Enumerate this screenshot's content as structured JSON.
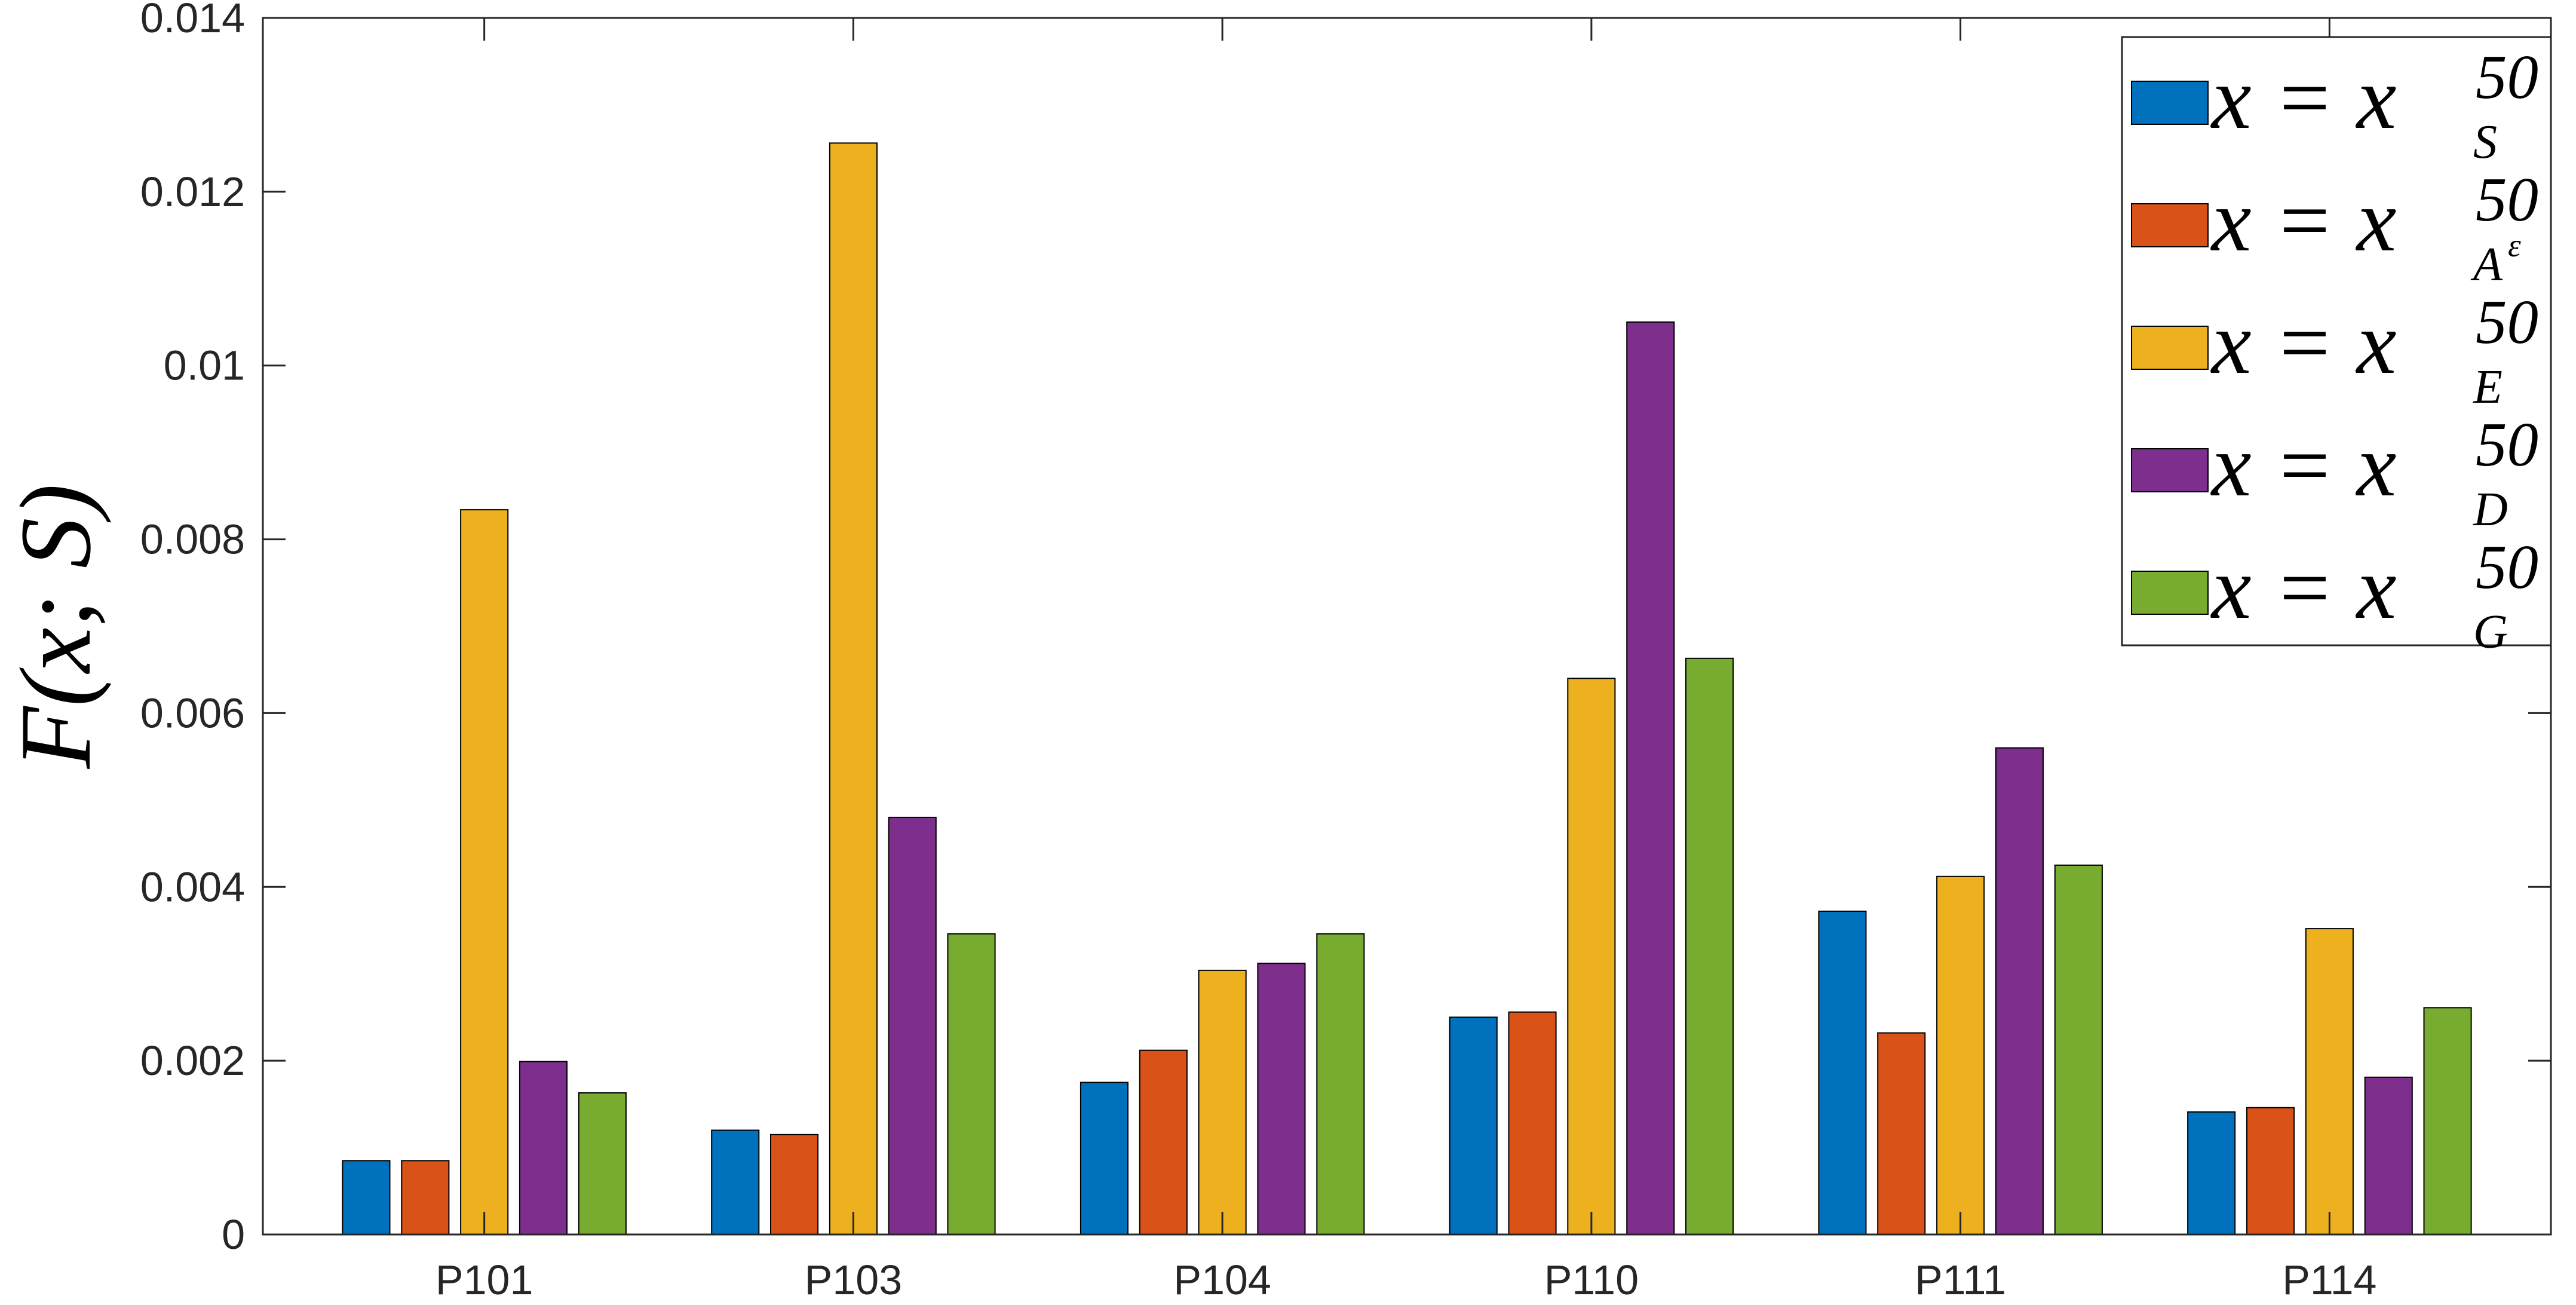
{
  "chart_data": {
    "type": "bar",
    "categories": [
      "P101",
      "P103",
      "P104",
      "P110",
      "P111",
      "P114"
    ],
    "series": [
      {
        "name": "x = x^50_S",
        "values": [
          0.00085,
          0.0012,
          0.00175,
          0.0025,
          0.00372,
          0.00141
        ],
        "color": "#0072BD"
      },
      {
        "name": "x = x^50_A^ε",
        "values": [
          0.00085,
          0.00115,
          0.00212,
          0.00256,
          0.00232,
          0.00146
        ],
        "color": "#D95319"
      },
      {
        "name": "x = x^50_E",
        "values": [
          0.00834,
          0.01256,
          0.00304,
          0.0064,
          0.00412,
          0.00352
        ],
        "color": "#EDB120"
      },
      {
        "name": "x = x^50_D",
        "values": [
          0.00199,
          0.0048,
          0.00312,
          0.0105,
          0.0056,
          0.00181
        ],
        "color": "#7E2F8E"
      },
      {
        "name": "x = x^50_G",
        "values": [
          0.00163,
          0.00346,
          0.00346,
          0.00663,
          0.00425,
          0.00261
        ],
        "color": "#77AC30"
      }
    ],
    "legend": {
      "position": "top-right",
      "entries": [
        {
          "base": "x = x",
          "sup": "50",
          "sub": "S",
          "sub_sup": ""
        },
        {
          "base": "x = x",
          "sup": "50",
          "sub": "A",
          "sub_sup": "ε"
        },
        {
          "base": "x = x",
          "sup": "50",
          "sub": "E",
          "sub_sup": ""
        },
        {
          "base": "x = x",
          "sup": "50",
          "sub": "D",
          "sub_sup": ""
        },
        {
          "base": "x = x",
          "sup": "50",
          "sub": "G",
          "sub_sup": ""
        }
      ]
    },
    "ylabel": {
      "text": "F(x; S)"
    },
    "xlabel": "",
    "title": "",
    "ylim": [
      0,
      0.014
    ],
    "yticks": [
      0,
      0.002,
      0.004,
      0.006,
      0.008,
      0.01,
      0.012,
      0.014
    ],
    "ytick_labels": [
      "0",
      "0.002",
      "0.004",
      "0.006",
      "0.008",
      "0.01",
      "0.012",
      "0.014"
    ],
    "grid": false
  }
}
